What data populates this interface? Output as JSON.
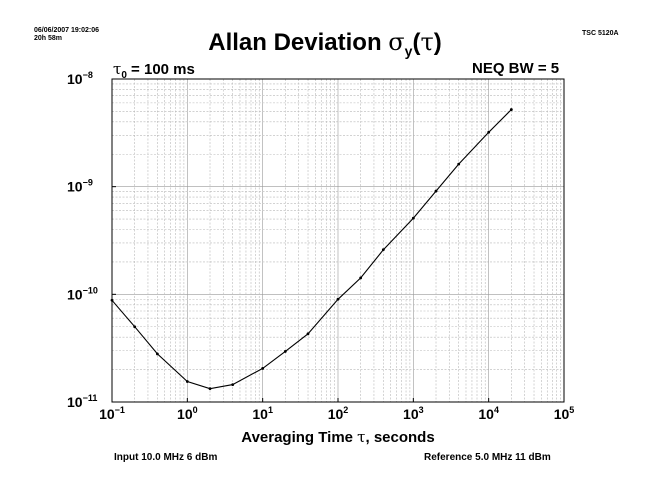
{
  "header": {
    "date": "06/06/2007 19:02:06",
    "duration": "20h 58m",
    "instrument": "TSC 5120A"
  },
  "annotations": {
    "tau0_symbol": "τ",
    "tau0_sub": "0",
    "tau0_value": "= 100 ms",
    "neq_bw": "NEQ BW = 5"
  },
  "footer": {
    "input": "Input 10.0 MHz 6 dBm",
    "reference": "Reference 5.0 MHz 11 dBm"
  },
  "chart_data": {
    "type": "line",
    "title": "Allan Deviation σy(τ)",
    "title_parts": {
      "text": "Allan Deviation ",
      "sigma": "σ",
      "sub": "y",
      "open": "(",
      "tau": "τ",
      "close": ")"
    },
    "xlabel": "Averaging Time τ, seconds",
    "xlabel_parts": {
      "before": "Averaging Time ",
      "tau": "τ",
      "after": ", seconds"
    },
    "ylabel": "",
    "xscale": "log",
    "yscale": "log",
    "xlim": [
      0.1,
      100000
    ],
    "ylim": [
      1e-11,
      1e-08
    ],
    "grid": true,
    "x_ticks": [
      {
        "value": 0.1,
        "base": "10",
        "exp": "−1"
      },
      {
        "value": 1,
        "base": "10",
        "exp": "0"
      },
      {
        "value": 10,
        "base": "10",
        "exp": "1"
      },
      {
        "value": 100,
        "base": "10",
        "exp": "2"
      },
      {
        "value": 1000,
        "base": "10",
        "exp": "3"
      },
      {
        "value": 10000,
        "base": "10",
        "exp": "4"
      },
      {
        "value": 100000,
        "base": "10",
        "exp": "5"
      }
    ],
    "y_ticks": [
      {
        "value": 1e-08,
        "base": "10",
        "exp": "−8"
      },
      {
        "value": 1e-09,
        "base": "10",
        "exp": "−9"
      },
      {
        "value": 1e-10,
        "base": "10",
        "exp": "−10"
      },
      {
        "value": 1e-11,
        "base": "10",
        "exp": "−11"
      }
    ],
    "series": [
      {
        "color": "#000000",
        "x": [
          0.1,
          0.2,
          0.4,
          1,
          2,
          4,
          10,
          20,
          40,
          100,
          200,
          400,
          1000,
          2000,
          4000,
          10000,
          20000
        ],
        "y": [
          8.8e-11,
          5e-11,
          2.8e-11,
          1.55e-11,
          1.33e-11,
          1.45e-11,
          2.05e-11,
          2.95e-11,
          4.3e-11,
          9e-11,
          1.42e-10,
          2.6e-10,
          5.1e-10,
          9.1e-10,
          1.62e-09,
          3.2e-09,
          5.2e-09
        ]
      }
    ]
  }
}
